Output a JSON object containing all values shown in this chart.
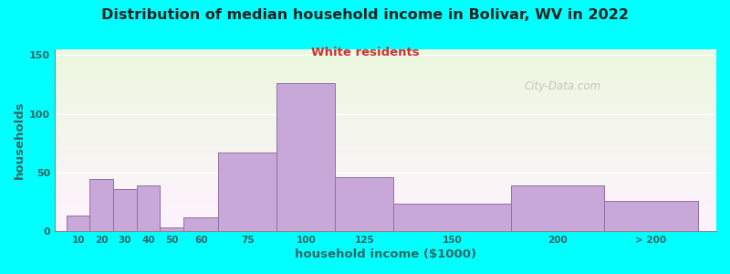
{
  "title": "Distribution of median household income in Bolivar, WV in 2022",
  "subtitle": "White residents",
  "xlabel": "household income ($1000)",
  "ylabel": "households",
  "background_color": "#00FFFF",
  "bar_color": "#c8a8d8",
  "bar_edge_color": "#9070a0",
  "title_color": "#222222",
  "subtitle_color": "#cc3333",
  "axis_label_color": "#336666",
  "tick_label_color": "#336666",
  "watermark": "City-Data.com",
  "values": [
    13,
    44,
    36,
    39,
    3,
    12,
    67,
    126,
    46,
    23,
    39,
    26
  ],
  "bar_lefts": [
    10,
    20,
    30,
    40,
    50,
    60,
    75,
    100,
    125,
    150,
    200,
    240
  ],
  "bar_widths": [
    10,
    10,
    10,
    10,
    10,
    15,
    25,
    25,
    25,
    50,
    40,
    40
  ],
  "ylim": [
    0,
    155
  ],
  "yticks": [
    0,
    50,
    100,
    150
  ],
  "xtick_labels": [
    "10",
    "20",
    "30",
    "40",
    "50",
    "60",
    "75",
    "100",
    "125",
    "150",
    "200",
    "> 200"
  ],
  "xlim_left": 5,
  "xlim_right": 288
}
